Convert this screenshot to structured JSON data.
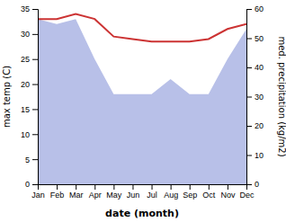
{
  "chart_data": {
    "type": "line",
    "xlabel": "date (month)",
    "ylabel": "max temp (C)",
    "y2label": "med. precipitation (kg/m2)",
    "categories": [
      "Jan",
      "Feb",
      "Mar",
      "Apr",
      "May",
      "Jun",
      "Jul",
      "Aug",
      "Sep",
      "Oct",
      "Nov",
      "Dec"
    ],
    "series": [
      {
        "type": "area",
        "color": "#b8c0e8",
        "values": [
          33,
          32,
          33,
          25,
          18,
          18,
          18,
          21,
          18,
          18,
          25,
          31
        ]
      },
      {
        "type": "line",
        "color": "#cc3333",
        "values": [
          33.0,
          33.0,
          34.0,
          33.0,
          29.5,
          29.0,
          28.5,
          28.5,
          28.5,
          29.0,
          31.0,
          32.0
        ]
      }
    ],
    "ylim": [
      0,
      35
    ],
    "yticks": [
      0,
      5,
      10,
      15,
      20,
      25,
      30,
      35
    ],
    "y2lim": [
      0,
      60
    ],
    "y2ticks": [
      0,
      10,
      20,
      30,
      40,
      50,
      60
    ],
    "grid": false
  }
}
